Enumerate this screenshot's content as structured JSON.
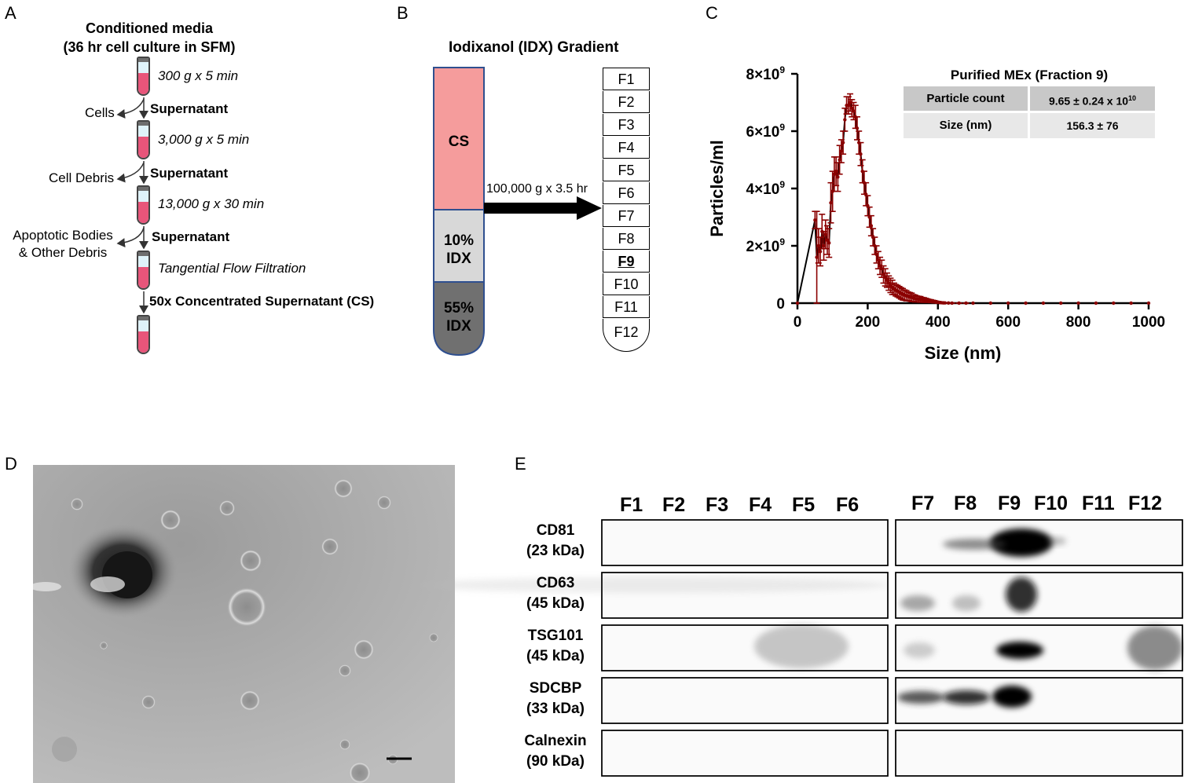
{
  "panelA": {
    "label": "A",
    "title1": "Conditioned media",
    "title2": "(36 hr cell culture in SFM)",
    "steps": [
      {
        "spin": "300 g x 5 min",
        "removed": "Cells",
        "product": "Supernatant"
      },
      {
        "spin": "3,000 g x 5 min",
        "removed": "Cell Debris",
        "product": "Supernatant"
      },
      {
        "spin": "13,000 g x 30 min",
        "removed1": "Apoptotic Bodies",
        "removed2": "& Other Debris",
        "product": "Supernatant"
      },
      {
        "spin": "Tangential Flow Filtration",
        "product": "50x Concentrated Supernatant (CS)"
      }
    ]
  },
  "panelB": {
    "label": "B",
    "title": "Iodixanol (IDX) Gradient",
    "layers": [
      "CS",
      "10%",
      "IDX",
      "55%",
      "IDX"
    ],
    "spin": "100,000 g x 3.5 hr",
    "fractions": [
      "F1",
      "F2",
      "F3",
      "F4",
      "F5",
      "F6",
      "F7",
      "F8",
      "F9",
      "F10",
      "F11",
      "F12"
    ],
    "highlight": "F9",
    "colors": {
      "cs": "#f59c9c",
      "idx10": "#d8d8d8",
      "idx55": "#707070",
      "outline": "#2f4f8f"
    }
  },
  "panelC": {
    "label": "C",
    "inset_title": "Purified MEx (Fraction 9)",
    "inset_rows": [
      {
        "name": "Particle count",
        "value": "9.65 ± 0.24 x 10",
        "exp": "10"
      },
      {
        "name": "Size (nm)",
        "value": "156.3 ±  76",
        "exp": ""
      }
    ],
    "ytick_mant": [
      "0",
      "2×10",
      "4×10",
      "6×10",
      "8×10"
    ],
    "ytick_exp": [
      "",
      "9",
      "9",
      "9",
      "9"
    ],
    "xticks": [
      "0",
      "200",
      "400",
      "600",
      "800",
      "1000"
    ]
  },
  "chart_data": {
    "type": "line",
    "xlabel": "Size (nm)",
    "ylabel": "Particles/ml",
    "xlim": [
      0,
      1000
    ],
    "ylim": [
      0,
      8000000000.0
    ],
    "series": [
      {
        "x": [
          0,
          50,
          55,
          60,
          65,
          70,
          75,
          80,
          85,
          90,
          95,
          100,
          105,
          110,
          115,
          120,
          125,
          130,
          135,
          140,
          145,
          150,
          155,
          160,
          165,
          170,
          175,
          180,
          185,
          190,
          195,
          200,
          205,
          210,
          215,
          220,
          225,
          230,
          235,
          240,
          245,
          250,
          255,
          260,
          265,
          270,
          275,
          280,
          285,
          290,
          295,
          300,
          305,
          310,
          315,
          320,
          325,
          330,
          335,
          340,
          345,
          350,
          355,
          360,
          365,
          370,
          375,
          380,
          385,
          390,
          395,
          400,
          405,
          410,
          415,
          420,
          430,
          440,
          460,
          480,
          500,
          550,
          600,
          650,
          700,
          750,
          800,
          850,
          900,
          950,
          1000
        ],
        "y": [
          0,
          2900000000.0,
          1600000000.0,
          2000000000.0,
          1800000000.0,
          2500000000.0,
          2000000000.0,
          2400000000.0,
          2200000000.0,
          2100000000.0,
          3500000000.0,
          3900000000.0,
          4500000000.0,
          4600000000.0,
          4400000000.0,
          5000000000.0,
          5300000000.0,
          5600000000.0,
          6400000000.0,
          6900000000.0,
          6900000000.0,
          7000000000.0,
          6800000000.0,
          6700000000.0,
          6500000000.0,
          6100000000.0,
          5600000000.0,
          5200000000.0,
          4600000000.0,
          4200000000.0,
          3800000000.0,
          3400000000.0,
          3000000000.0,
          2700000000.0,
          2300000000.0,
          2000000000.0,
          1700000000.0,
          1500000000.0,
          1300000000.0,
          1200000000.0,
          1000000000.0,
          900000000.0,
          800000000.0,
          700000000.0,
          620000000.0,
          550000000.0,
          500000000.0,
          450000000.0,
          420000000.0,
          380000000.0,
          340000000.0,
          310000000.0,
          280000000.0,
          260000000.0,
          240000000.0,
          220000000.0,
          200000000.0,
          180000000.0,
          160000000.0,
          150000000.0,
          140000000.0,
          130000000.0,
          120000000.0,
          110000000.0,
          100000000.0,
          90000000.0,
          80000000.0,
          70000000.0,
          60000000.0,
          50000000.0,
          40000000.0,
          30000000.0,
          20000000.0,
          15000000.0,
          10000000.0,
          8000000.0,
          5000000.0,
          3000000.0,
          2000000.0,
          1000000.0,
          0,
          0,
          0,
          0,
          0,
          0,
          0,
          0,
          0,
          0,
          0
        ],
        "err": [
          0,
          300000000.0,
          1600000000.0,
          600000000.0,
          500000000.0,
          600000000.0,
          500000000.0,
          500000000.0,
          500000000.0,
          500000000.0,
          700000000.0,
          700000000.0,
          600000000.0,
          500000000.0,
          500000000.0,
          500000000.0,
          400000000.0,
          400000000.0,
          400000000.0,
          300000000.0,
          300000000.0,
          300000000.0,
          300000000.0,
          300000000.0,
          400000000.0,
          400000000.0,
          400000000.0,
          400000000.0,
          400000000.0,
          400000000.0,
          400000000.0,
          350000000.0,
          350000000.0,
          350000000.0,
          300000000.0,
          300000000.0,
          300000000.0,
          300000000.0,
          300000000.0,
          300000000.0,
          300000000.0,
          300000000.0,
          250000000.0,
          250000000.0,
          250000000.0,
          250000000.0,
          200000000.0,
          200000000.0,
          200000000.0,
          200000000.0,
          200000000.0,
          200000000.0,
          180000000.0,
          180000000.0,
          150000000.0,
          150000000.0,
          150000000.0,
          120000000.0,
          120000000.0,
          100000000.0,
          100000000.0,
          100000000.0,
          80000000.0,
          80000000.0,
          70000000.0,
          60000000.0,
          50000000.0,
          50000000.0,
          40000000.0,
          40000000.0,
          30000000.0,
          30000000.0,
          20000000.0,
          20000000.0,
          10000000.0,
          10000000.0,
          5000000.0,
          3000000.0,
          2000000.0,
          1000000.0,
          0,
          0,
          0,
          0,
          0,
          0,
          0,
          0,
          0,
          0,
          0
        ]
      }
    ],
    "colors": {
      "points": "#8b0000",
      "fit": "#000000"
    }
  },
  "panelD": {
    "label": "D"
  },
  "panelE": {
    "label": "E",
    "lanes_left": [
      "F1",
      "F2",
      "F3",
      "F4",
      "F5",
      "F6"
    ],
    "lanes_right": [
      "F7",
      "F8",
      "F9",
      "F10",
      "F11",
      "F12"
    ],
    "rows": [
      {
        "name": "CD81",
        "kda": "(23 kDa)"
      },
      {
        "name": "CD63",
        "kda": "(45 kDa)"
      },
      {
        "name": "TSG101",
        "kda": "(45 kDa)"
      },
      {
        "name": "SDCBP",
        "kda": "(33 kDa)"
      },
      {
        "name": "Calnexin",
        "kda": "(90 kDa)"
      }
    ]
  }
}
